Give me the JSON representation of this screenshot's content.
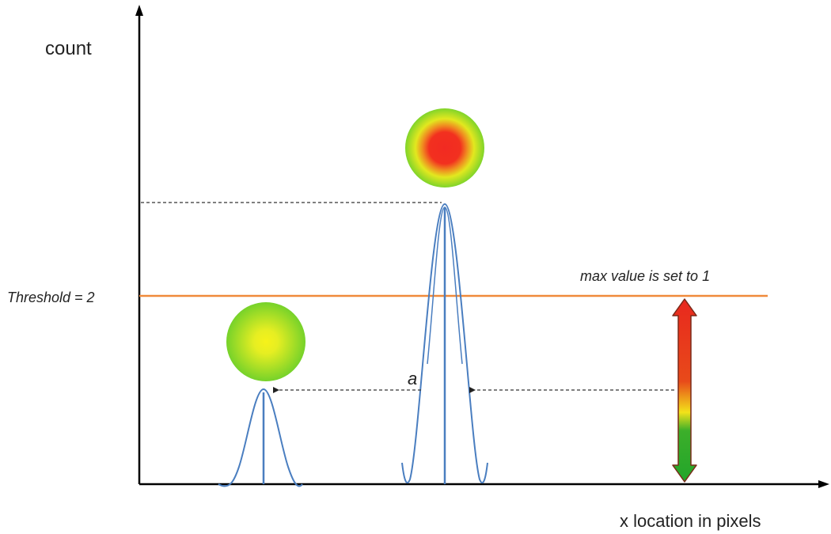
{
  "labels": {
    "y_axis": "count",
    "x_axis": "x location in pixels",
    "threshold": "Threshold = 2",
    "max_note": "max value is set to 1",
    "a_mark": "a"
  },
  "colors": {
    "axis": "#000000",
    "curve": "#4a7ec0",
    "threshold_line": "#f08a3a",
    "dashed": "#333333",
    "arrow_top": "#e8281e",
    "arrow_mid": "#f2e21a",
    "arrow_bottom": "#22a52a",
    "arrow_outline": "#7a2a1a",
    "blob_red": "#f22a22",
    "blob_yellow": "#f4f21a",
    "blob_green": "#7fd52a"
  },
  "icons": {
    "small_blob": "green-yellow-spot-icon",
    "large_blob": "red-hot-spot-icon",
    "scale_arrow": "color-scale-double-arrow-icon"
  }
}
